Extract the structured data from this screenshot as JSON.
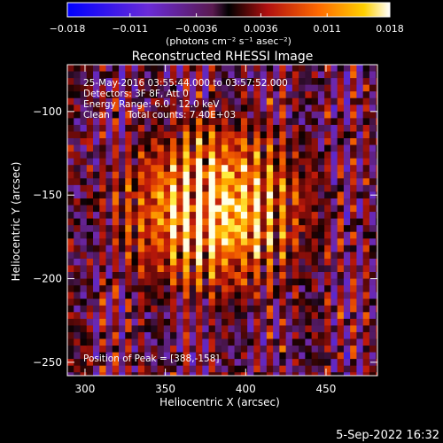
{
  "chart_data": {
    "type": "heatmap",
    "title": "Reconstructed RHESSI Image",
    "xlabel": "Heliocentric X (arcsec)",
    "ylabel": "Heliocentric Y (arcsec)",
    "xlim": [
      289,
      482
    ],
    "ylim": [
      -258,
      -72
    ],
    "x_ticks": [
      300,
      350,
      400,
      450
    ],
    "y_ticks": [
      -100,
      -150,
      -200,
      -250
    ],
    "colorbar": {
      "ticks": [
        -0.018,
        -0.011,
        -0.0036,
        0.0036,
        0.011,
        0.018
      ],
      "tick_labels": [
        "−0.018",
        "−0.011",
        "−0.0036",
        "0.0036",
        "0.011",
        "0.018"
      ],
      "range": [
        -0.018,
        0.018
      ],
      "label": "(photons cm⁻² s⁻¹ asec⁻²)"
    },
    "annotations": {
      "time_range": "25-May-2016 03:55:44.000 to 03:57:52.000",
      "detectors": "Detectors: 3F 8F, Att 0",
      "energy": "Energy Range: 6.0 - 12.0 keV",
      "method": "Clean",
      "counts": "Total counts: 7.40E+03",
      "peak": "Position of Peak = [388,-158]"
    },
    "peak": {
      "x": 388,
      "y": -158
    },
    "source_center": {
      "x": 380,
      "y": -158
    },
    "colormap": "blue-purple-red-yellow-white"
  },
  "footer": {
    "date": "5-Sep-2022 16:32"
  }
}
